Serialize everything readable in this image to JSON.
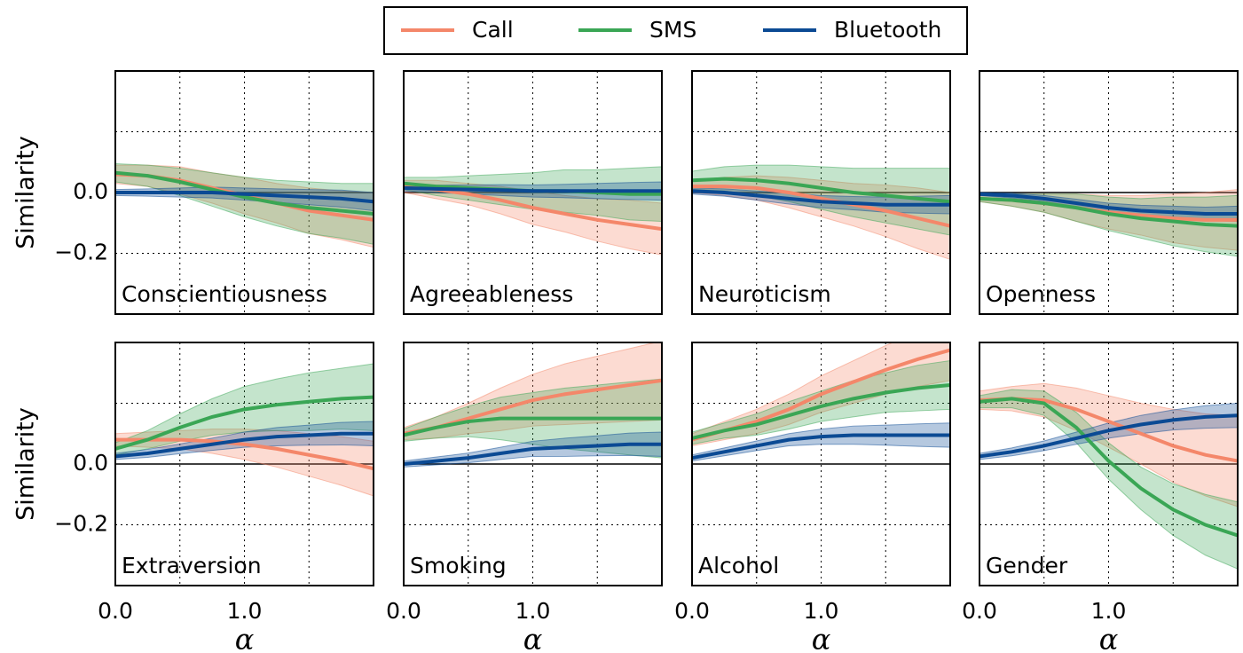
{
  "chart_data": [
    {
      "type": "line",
      "title": "Conscientiousness",
      "ylabel": "Similarity",
      "x": [
        0,
        0.25,
        0.5,
        0.75,
        1,
        1.25,
        1.5,
        1.75,
        2
      ],
      "xlim": [
        0,
        2
      ],
      "ylim": [
        -0.4,
        0.4
      ],
      "xticks": [
        0,
        0.5,
        1,
        1.5
      ],
      "yticks": [
        {
          "value": -0.2,
          "label": "−0.2"
        },
        {
          "value": 0,
          "label": "0.0"
        },
        0.2,
        0.4
      ],
      "grid": true,
      "series": [
        {
          "name": "Call",
          "color": "#f4876a",
          "values": [
            0.06,
            0.055,
            0.04,
            0.015,
            -0.01,
            -0.035,
            -0.06,
            -0.075,
            -0.09
          ],
          "errors": [
            0.03,
            0.035,
            0.045,
            0.05,
            0.06,
            0.065,
            0.075,
            0.08,
            0.09
          ]
        },
        {
          "name": "SMS",
          "color": "#3aa655",
          "values": [
            0.065,
            0.055,
            0.035,
            0.01,
            -0.015,
            -0.035,
            -0.05,
            -0.06,
            -0.07
          ],
          "errors": [
            0.03,
            0.035,
            0.045,
            0.055,
            0.065,
            0.075,
            0.085,
            0.09,
            0.1
          ]
        },
        {
          "name": "Bluetooth",
          "color": "#0b4a94",
          "values": [
            0,
            0,
            0,
            0,
            -0.005,
            -0.01,
            -0.015,
            -0.02,
            -0.03
          ],
          "errors": [
            0.01,
            0.012,
            0.015,
            0.018,
            0.02,
            0.022,
            0.025,
            0.028,
            0.03
          ]
        }
      ]
    },
    {
      "type": "line",
      "title": "Agreeableness",
      "x": [
        0,
        0.25,
        0.5,
        0.75,
        1,
        1.25,
        1.5,
        1.75,
        2
      ],
      "xlim": [
        0,
        2
      ],
      "ylim": [
        -0.4,
        0.4
      ],
      "xticks": [
        0,
        0.5,
        1,
        1.5
      ],
      "yticks": [
        -0.2,
        0.2,
        0.4
      ],
      "grid": true,
      "series": [
        {
          "color": "#f4876a",
          "values": [
            0.02,
            0.01,
            -0.005,
            -0.025,
            -0.05,
            -0.07,
            -0.09,
            -0.105,
            -0.12
          ],
          "errors": [
            0.02,
            0.03,
            0.035,
            0.045,
            0.055,
            0.06,
            0.07,
            0.08,
            0.085
          ]
        },
        {
          "color": "#3aa655",
          "values": [
            0.03,
            0.02,
            0.015,
            0.01,
            0.005,
            0.005,
            0,
            -0.005,
            -0.005
          ],
          "errors": [
            0.02,
            0.03,
            0.04,
            0.05,
            0.06,
            0.07,
            0.075,
            0.085,
            0.09
          ]
        },
        {
          "color": "#0b4a94",
          "values": [
            0.015,
            0.012,
            0.01,
            0.008,
            0.005,
            0.005,
            0.005,
            0.005,
            0.005
          ],
          "errors": [
            0.01,
            0.012,
            0.015,
            0.018,
            0.02,
            0.022,
            0.025,
            0.028,
            0.03
          ]
        }
      ]
    },
    {
      "type": "line",
      "title": "Neuroticism",
      "x": [
        0,
        0.25,
        0.5,
        0.75,
        1,
        1.25,
        1.5,
        1.75,
        2
      ],
      "xlim": [
        0,
        2
      ],
      "ylim": [
        -0.4,
        0.4
      ],
      "xticks": [
        0,
        0.5,
        1,
        1.5
      ],
      "yticks": [
        -0.2,
        0.2,
        0.4
      ],
      "grid": true,
      "series": [
        {
          "color": "#f4876a",
          "values": [
            0.02,
            0.02,
            0.015,
            0,
            -0.02,
            -0.04,
            -0.06,
            -0.085,
            -0.11
          ],
          "errors": [
            0.02,
            0.03,
            0.04,
            0.05,
            0.06,
            0.07,
            0.085,
            0.1,
            0.11
          ]
        },
        {
          "color": "#3aa655",
          "values": [
            0.04,
            0.045,
            0.04,
            0.03,
            0.015,
            0,
            -0.01,
            -0.02,
            -0.03
          ],
          "errors": [
            0.03,
            0.04,
            0.05,
            0.06,
            0.07,
            0.08,
            0.09,
            0.1,
            0.11
          ]
        },
        {
          "color": "#0b4a94",
          "values": [
            0.005,
            0,
            -0.01,
            -0.02,
            -0.03,
            -0.035,
            -0.04,
            -0.04,
            -0.04
          ],
          "errors": [
            0.01,
            0.012,
            0.015,
            0.018,
            0.02,
            0.022,
            0.025,
            0.028,
            0.03
          ]
        }
      ]
    },
    {
      "type": "line",
      "title": "Openness",
      "x": [
        0,
        0.25,
        0.5,
        0.75,
        1,
        1.25,
        1.5,
        1.75,
        2
      ],
      "xlim": [
        0,
        2
      ],
      "ylim": [
        -0.4,
        0.4
      ],
      "xticks": [
        0,
        0.5,
        1,
        1.5
      ],
      "yticks": [
        -0.2,
        0.2,
        0.4
      ],
      "grid": true,
      "series": [
        {
          "color": "#f4876a",
          "values": [
            -0.02,
            -0.025,
            -0.035,
            -0.05,
            -0.065,
            -0.075,
            -0.085,
            -0.09,
            -0.09
          ],
          "errors": [
            0.01,
            0.02,
            0.03,
            0.045,
            0.055,
            0.065,
            0.08,
            0.09,
            0.1
          ]
        },
        {
          "color": "#3aa655",
          "values": [
            -0.02,
            -0.025,
            -0.035,
            -0.05,
            -0.07,
            -0.085,
            -0.095,
            -0.105,
            -0.11
          ],
          "errors": [
            0.01,
            0.02,
            0.03,
            0.045,
            0.055,
            0.065,
            0.08,
            0.09,
            0.1
          ]
        },
        {
          "color": "#0b4a94",
          "values": [
            -0.005,
            -0.01,
            -0.02,
            -0.035,
            -0.05,
            -0.06,
            -0.065,
            -0.07,
            -0.07
          ],
          "errors": [
            0.005,
            0.008,
            0.01,
            0.013,
            0.015,
            0.018,
            0.02,
            0.022,
            0.025
          ]
        }
      ]
    },
    {
      "type": "line",
      "title": "Extraversion",
      "ylabel": "Similarity",
      "xlabel": "α",
      "x": [
        0,
        0.25,
        0.5,
        0.75,
        1,
        1.25,
        1.5,
        1.75,
        2
      ],
      "xlim": [
        0,
        2
      ],
      "ylim": [
        -0.4,
        0.4
      ],
      "xticks": [
        {
          "value": 0,
          "label": "0.0"
        },
        0.5,
        {
          "value": 1,
          "label": "1.0"
        },
        1.5
      ],
      "yticks": [
        {
          "value": -0.2,
          "label": "−0.2"
        },
        {
          "value": 0,
          "label": "0.0"
        },
        0.2,
        0.4
      ],
      "grid": true,
      "series": [
        {
          "color": "#f4876a",
          "values": [
            0.08,
            0.08,
            0.08,
            0.075,
            0.065,
            0.05,
            0.03,
            0.01,
            -0.015
          ],
          "errors": [
            0.02,
            0.025,
            0.03,
            0.04,
            0.05,
            0.06,
            0.07,
            0.08,
            0.09
          ]
        },
        {
          "color": "#3aa655",
          "values": [
            0.05,
            0.08,
            0.12,
            0.155,
            0.18,
            0.195,
            0.205,
            0.215,
            0.22
          ],
          "errors": [
            0.02,
            0.03,
            0.045,
            0.06,
            0.075,
            0.085,
            0.095,
            0.1,
            0.11
          ]
        },
        {
          "color": "#0b4a94",
          "values": [
            0.025,
            0.035,
            0.05,
            0.065,
            0.08,
            0.09,
            0.095,
            0.1,
            0.1
          ],
          "errors": [
            0.01,
            0.013,
            0.016,
            0.02,
            0.025,
            0.03,
            0.033,
            0.037,
            0.04
          ]
        }
      ]
    },
    {
      "type": "line",
      "title": "Smoking",
      "xlabel": "α",
      "x": [
        0,
        0.25,
        0.5,
        0.75,
        1,
        1.25,
        1.5,
        1.75,
        2
      ],
      "xlim": [
        0,
        2
      ],
      "ylim": [
        -0.4,
        0.4
      ],
      "xticks": [
        {
          "value": 0,
          "label": "0.0"
        },
        0.5,
        {
          "value": 1,
          "label": "1.0"
        },
        1.5
      ],
      "yticks": [
        -0.2,
        0.2,
        0.4
      ],
      "grid": true,
      "series": [
        {
          "color": "#f4876a",
          "values": [
            0.1,
            0.12,
            0.15,
            0.18,
            0.21,
            0.23,
            0.245,
            0.26,
            0.275
          ],
          "errors": [
            0.02,
            0.035,
            0.05,
            0.07,
            0.085,
            0.1,
            0.11,
            0.12,
            0.13
          ]
        },
        {
          "color": "#3aa655",
          "values": [
            0.095,
            0.12,
            0.14,
            0.15,
            0.15,
            0.15,
            0.15,
            0.15,
            0.15
          ],
          "errors": [
            0.02,
            0.035,
            0.05,
            0.07,
            0.085,
            0.1,
            0.11,
            0.12,
            0.13
          ]
        },
        {
          "color": "#0b4a94",
          "values": [
            0,
            0.01,
            0.02,
            0.035,
            0.05,
            0.055,
            0.06,
            0.065,
            0.065
          ],
          "errors": [
            0.01,
            0.013,
            0.016,
            0.02,
            0.025,
            0.03,
            0.033,
            0.037,
            0.04
          ]
        }
      ]
    },
    {
      "type": "line",
      "title": "Alcohol",
      "xlabel": "α",
      "x": [
        0,
        0.25,
        0.5,
        0.75,
        1,
        1.25,
        1.5,
        1.75,
        2
      ],
      "xlim": [
        0,
        2
      ],
      "ylim": [
        -0.4,
        0.4
      ],
      "xticks": [
        {
          "value": 0,
          "label": "0.0"
        },
        0.5,
        {
          "value": 1,
          "label": "1.0"
        },
        1.5
      ],
      "yticks": [
        -0.2,
        0.2,
        0.4
      ],
      "grid": true,
      "series": [
        {
          "color": "#f4876a",
          "values": [
            0.08,
            0.11,
            0.14,
            0.18,
            0.23,
            0.27,
            0.31,
            0.345,
            0.375
          ],
          "errors": [
            0.02,
            0.03,
            0.04,
            0.05,
            0.06,
            0.07,
            0.08,
            0.09,
            0.1
          ]
        },
        {
          "color": "#3aa655",
          "values": [
            0.085,
            0.11,
            0.13,
            0.16,
            0.19,
            0.215,
            0.235,
            0.25,
            0.26
          ],
          "errors": [
            0.02,
            0.025,
            0.035,
            0.045,
            0.05,
            0.06,
            0.065,
            0.075,
            0.08
          ]
        },
        {
          "color": "#0b4a94",
          "values": [
            0.02,
            0.04,
            0.06,
            0.08,
            0.09,
            0.095,
            0.095,
            0.095,
            0.095
          ],
          "errors": [
            0.01,
            0.013,
            0.016,
            0.02,
            0.025,
            0.03,
            0.033,
            0.037,
            0.04
          ]
        }
      ]
    },
    {
      "type": "line",
      "title": "Gender",
      "xlabel": "α",
      "x": [
        0,
        0.25,
        0.5,
        0.75,
        1,
        1.25,
        1.5,
        1.75,
        2
      ],
      "xlim": [
        0,
        2
      ],
      "ylim": [
        -0.4,
        0.4
      ],
      "xticks": [
        {
          "value": 0,
          "label": "0.0"
        },
        0.5,
        {
          "value": 1,
          "label": "1.0"
        },
        1.5
      ],
      "yticks": [
        -0.2,
        0.2,
        0.4
      ],
      "grid": true,
      "series": [
        {
          "color": "#f4876a",
          "values": [
            0.21,
            0.215,
            0.21,
            0.18,
            0.14,
            0.1,
            0.06,
            0.03,
            0.01
          ],
          "errors": [
            0.03,
            0.04,
            0.055,
            0.07,
            0.085,
            0.1,
            0.12,
            0.135,
            0.15
          ]
        },
        {
          "color": "#3aa655",
          "values": [
            0.205,
            0.215,
            0.2,
            0.12,
            0.01,
            -0.08,
            -0.15,
            -0.2,
            -0.235
          ],
          "errors": [
            0.02,
            0.03,
            0.04,
            0.05,
            0.06,
            0.07,
            0.085,
            0.1,
            0.11
          ]
        },
        {
          "color": "#0b4a94",
          "values": [
            0.025,
            0.04,
            0.06,
            0.085,
            0.11,
            0.13,
            0.145,
            0.155,
            0.16
          ],
          "errors": [
            0.01,
            0.013,
            0.016,
            0.02,
            0.025,
            0.03,
            0.033,
            0.037,
            0.04
          ]
        }
      ]
    }
  ]
}
